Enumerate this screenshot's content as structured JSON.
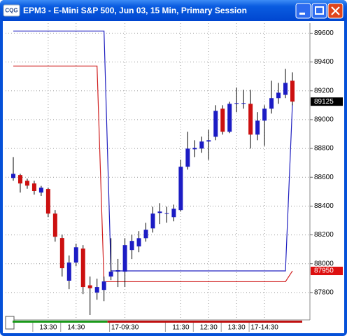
{
  "window": {
    "logo": "CQG"
  },
  "chart_data": {
    "type": "candlestick",
    "title": "EPM3 - E-Mini S&P 500, Jun 03, 15 Min, Primary Session",
    "categories": [
      null,
      null,
      null,
      null,
      null,
      "13:30",
      null,
      null,
      null,
      "14:30",
      null,
      null,
      null,
      null,
      null,
      null,
      "17-09:30",
      null,
      null,
      null,
      null,
      null,
      null,
      null,
      "11:30",
      null,
      null,
      null,
      "12:30",
      null,
      null,
      null,
      "13:30",
      null,
      null,
      null,
      "17-14:30",
      null,
      null,
      null,
      null
    ],
    "open": [
      88595,
      88615,
      88576,
      88557,
      88494,
      88518,
      88348,
      88178,
      87882,
      88008,
      88105,
      87850,
      87800,
      87818,
      87911,
      87945,
      87945,
      88095,
      88120,
      88177,
      88245,
      88352,
      88348,
      88323,
      88372,
      88673,
      88794,
      88799,
      88848,
      88881,
      89076,
      88916,
      89110,
      89110,
      89110,
      88896,
      88993,
      89076,
      89149,
      89172,
      89270
    ],
    "high": [
      88740,
      88624,
      88590,
      88576,
      88540,
      88528,
      88372,
      88202,
      88057,
      88139,
      88129,
      87911,
      87896,
      87911,
      88177,
      88033,
      88177,
      88202,
      88226,
      88284,
      88396,
      88420,
      88396,
      88410,
      88722,
      88916,
      88857,
      88882,
      88930,
      89100,
      89100,
      89124,
      89222,
      89207,
      89207,
      89052,
      89100,
      89270,
      89255,
      89352,
      89328
    ],
    "low": [
      88576,
      88494,
      88520,
      88480,
      88470,
      88323,
      88153,
      87911,
      87823,
      87983,
      87789,
      87644,
      87750,
      87740,
      87886,
      87838,
      87838,
      88032,
      88080,
      88153,
      88216,
      88275,
      88285,
      88294,
      88362,
      88653,
      88740,
      88770,
      88721,
      88857,
      88896,
      88906,
      89052,
      89076,
      88799,
      88857,
      88818,
      89042,
      89110,
      89149,
      89100
    ],
    "close": [
      88624,
      88557,
      88542,
      88504,
      88528,
      88348,
      88187,
      87969,
      88008,
      88114,
      87838,
      87830,
      87838,
      87877,
      87945,
      87955,
      88129,
      88158,
      88177,
      88236,
      88348,
      88362,
      88352,
      88382,
      88673,
      88799,
      88804,
      88848,
      88857,
      89061,
      88916,
      89110,
      89115,
      89115,
      88896,
      88993,
      89076,
      89149,
      89187,
      89255,
      89125
    ],
    "up_color": "#1c1cc4",
    "down_color": "#cc1010",
    "lines": [
      {
        "color": "#2020c0",
        "values": [
          89615,
          89615,
          89615,
          89615,
          89615,
          89615,
          89615,
          89615,
          89615,
          89615,
          89615,
          89615,
          89615,
          89615,
          87950,
          87950,
          87950,
          87950,
          87950,
          87950,
          87950,
          87950,
          87950,
          87950,
          87950,
          87950,
          87950,
          87950,
          87950,
          87950,
          87950,
          87950,
          87950,
          87950,
          87950,
          87950,
          87950,
          87950,
          87950,
          87950,
          89110
        ]
      },
      {
        "color": "#d02020",
        "values": [
          89372,
          89372,
          89372,
          89372,
          89372,
          89372,
          89372,
          89372,
          89372,
          89372,
          89372,
          89372,
          89372,
          87875,
          87875,
          87875,
          87875,
          87875,
          87875,
          87875,
          87875,
          87875,
          87875,
          87875,
          87875,
          87875,
          87875,
          87875,
          87875,
          87875,
          87875,
          87875,
          87875,
          87875,
          87875,
          87875,
          87875,
          87875,
          87875,
          87875,
          87950
        ]
      }
    ],
    "price_markers": [
      {
        "value": 89125,
        "color": "#000000"
      },
      {
        "value": 87950,
        "color": "#dd1010"
      }
    ],
    "ylim": [
      87610,
      89670
    ],
    "yticks": [
      87800,
      88000,
      88200,
      88400,
      88600,
      88800,
      89000,
      89200,
      89400,
      89600
    ],
    "grid": true
  }
}
